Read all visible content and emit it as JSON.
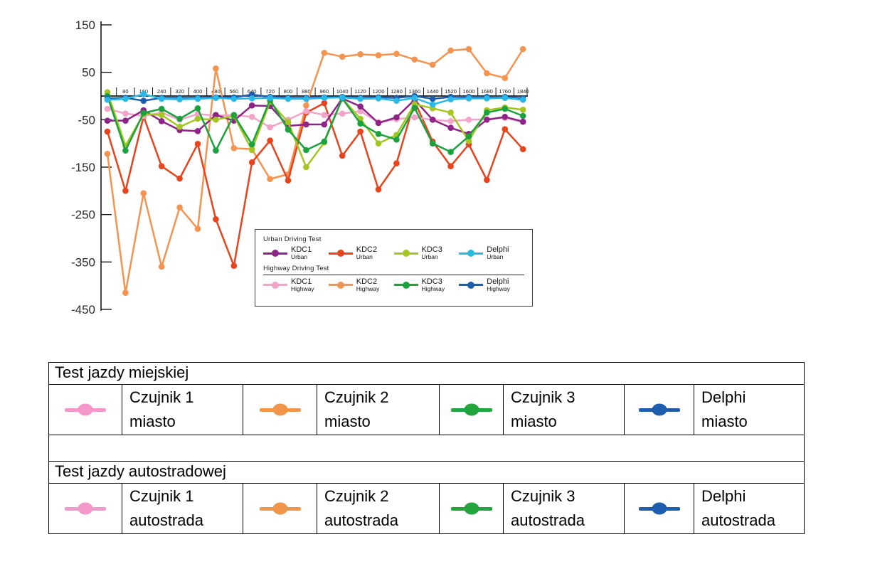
{
  "chart": {
    "legend": {
      "groups": [
        {
          "title": "Urban Driving Test",
          "entries": [
            {
              "name": "KDC1",
              "sub": "Urban",
              "color": "#8e2487"
            },
            {
              "name": "KDC2",
              "sub": "Urban",
              "color": "#e8431c"
            },
            {
              "name": "KDC3",
              "sub": "Urban",
              "color": "#a5c621"
            },
            {
              "name": "Delphi",
              "sub": "Urban",
              "color": "#29b9e8"
            }
          ]
        },
        {
          "title": "Highway Driving Test",
          "entries": [
            {
              "name": "KDC1",
              "sub": "Highway",
              "color": "#f4a3c9"
            },
            {
              "name": "KDC2",
              "sub": "Highway",
              "color": "#f59350"
            },
            {
              "name": "KDC3",
              "sub": "Highway",
              "color": "#1aa23e"
            },
            {
              "name": "Delphi",
              "sub": "Highway",
              "color": "#1e5dae"
            }
          ]
        }
      ]
    }
  },
  "chart_data": {
    "type": "line",
    "title": "",
    "xlabel": "",
    "ylabel": "",
    "grid": false,
    "legend_position": "inside-bottom-right",
    "ylim": [
      -450,
      150
    ],
    "y_ticks": [
      150,
      50,
      -50,
      -150,
      -250,
      -350,
      -450
    ],
    "x": [
      0,
      80,
      160,
      240,
      320,
      400,
      480,
      560,
      640,
      720,
      800,
      880,
      960,
      1040,
      1120,
      1200,
      1280,
      1360,
      1440,
      1520,
      1600,
      1680,
      1760,
      1840
    ],
    "series": [
      {
        "name": "KDC1 Urban",
        "color": "#8e2487",
        "values": [
          -52,
          -52,
          -30,
          -53,
          -72,
          -74,
          -40,
          -52,
          -20,
          -21,
          -63,
          -60,
          -60,
          -5,
          -22,
          -57,
          -45,
          -8,
          -50,
          -67,
          -80,
          -50,
          -44,
          -54
        ]
      },
      {
        "name": "KDC2 Urban",
        "color": "#e8431c",
        "values": [
          -75,
          -200,
          -43,
          -148,
          -174,
          -101,
          -260,
          -358,
          -140,
          -94,
          -178,
          -35,
          -15,
          -126,
          -75,
          -197,
          -142,
          -11,
          -96,
          -148,
          -102,
          -177,
          -70,
          -112
        ]
      },
      {
        "name": "KDC3 Urban",
        "color": "#a5c621",
        "values": [
          8,
          -105,
          -38,
          -40,
          -65,
          -48,
          -50,
          -42,
          -114,
          -12,
          -55,
          -150,
          -98,
          -5,
          -48,
          -100,
          -82,
          -17,
          -26,
          -35,
          -95,
          -30,
          -24,
          -29
        ]
      },
      {
        "name": "Delphi Urban",
        "color": "#29b9e8",
        "values": [
          -8,
          -6,
          4,
          -6,
          -7,
          -6,
          -4,
          -6,
          -5,
          -4,
          -6,
          -6,
          -4,
          -3,
          -6,
          -5,
          -10,
          -4,
          -18,
          -7,
          -5,
          -5,
          -4,
          -8
        ]
      },
      {
        "name": "KDC1 Highway",
        "color": "#f4a3c9",
        "values": [
          -27,
          -37,
          -42,
          -35,
          -50,
          -38,
          -41,
          -40,
          -44,
          -66,
          -50,
          -32,
          -40,
          -37,
          -32,
          -55,
          -49,
          -45,
          -50,
          -53,
          -50,
          -49,
          -46,
          -55
        ]
      },
      {
        "name": "KDC2 Highway",
        "color": "#f59350",
        "values": [
          -122,
          -415,
          -205,
          -360,
          -235,
          -280,
          58,
          -110,
          -112,
          -175,
          -165,
          -20,
          91,
          83,
          88,
          86,
          89,
          77,
          66,
          96,
          99,
          48,
          38,
          99
        ]
      },
      {
        "name": "KDC3 Highway",
        "color": "#1aa23e",
        "values": [
          0,
          -115,
          -36,
          -27,
          -48,
          -26,
          -115,
          -40,
          -102,
          -8,
          -71,
          -114,
          -96,
          -5,
          -58,
          -80,
          -92,
          -25,
          -100,
          -118,
          -85,
          -35,
          -27,
          -42
        ]
      },
      {
        "name": "Delphi Highway",
        "color": "#1e5dae",
        "values": [
          -5,
          -4,
          -10,
          -4,
          -4,
          -4,
          -3,
          -3,
          3,
          -2,
          -4,
          -4,
          -3,
          -2,
          -4,
          -3,
          -4,
          0,
          -6,
          -2,
          -2,
          -2,
          -2,
          -5
        ]
      }
    ],
    "draw_order": [
      5,
      1,
      4,
      0,
      2,
      6,
      7,
      3
    ]
  },
  "table": {
    "sections": [
      {
        "header": "Test jazdy miejskiej",
        "entries": [
          {
            "label": "Czujnik 1",
            "place": "miasto",
            "color": "#f398c8"
          },
          {
            "label": "Czujnik 2",
            "place": "miasto",
            "color": "#f0954a"
          },
          {
            "label": "Czujnik 3",
            "place": "miasto",
            "color": "#21a53c"
          },
          {
            "label": "Delphi",
            "place": "miasto",
            "color": "#1d5fae"
          }
        ]
      },
      {
        "header": "Test jazdy autostradowej",
        "entries": [
          {
            "label": "Czujnik 1",
            "place": "autostrada",
            "color": "#f398c8"
          },
          {
            "label": "Czujnik 2",
            "place": "autostrada",
            "color": "#f0954a"
          },
          {
            "label": "Czujnik 3",
            "place": "autostrada",
            "color": "#21a53c"
          },
          {
            "label": "Delphi",
            "place": "autostrada",
            "color": "#1d5fae"
          }
        ]
      }
    ]
  }
}
